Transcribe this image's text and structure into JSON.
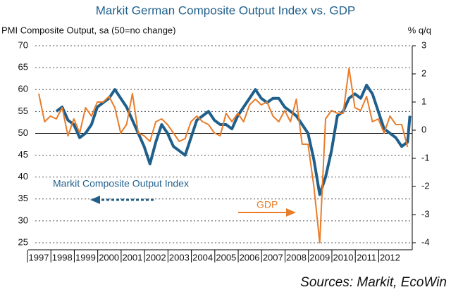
{
  "chart_data": {
    "type": "line",
    "title": "Markit German Composite Output Index vs. GDP",
    "y_label": "PMI Composite Output, sa (50=no change)",
    "y2_label": "% q/q",
    "annotations": [
      "Markit Composite Output Index",
      "GDP"
    ],
    "source": "Sources: Markit, EcoWin",
    "xlim": [
      1996.85,
      2012.95
    ],
    "xticks": [
      1997,
      1998,
      1999,
      2000,
      2001,
      2002,
      2003,
      2004,
      2005,
      2006,
      2007,
      2008,
      2009,
      2010,
      2011,
      2012
    ],
    "ylim": [
      25,
      70
    ],
    "yticks": [
      25,
      30,
      35,
      40,
      45,
      50,
      55,
      60,
      65,
      70
    ],
    "y2lim": [
      -4,
      3
    ],
    "y2ticks": [
      -4,
      -3,
      -2,
      -1,
      0,
      1,
      2,
      3
    ],
    "hline": 50,
    "grid": true,
    "series": [
      {
        "name": "Markit Composite Output Index",
        "color": "#1f5f8b",
        "x": [
          1997.75,
          1998.0,
          1998.25,
          1998.5,
          1998.75,
          1999.0,
          1999.25,
          1999.5,
          1999.75,
          2000.0,
          2000.25,
          2000.5,
          2000.75,
          2001.0,
          2001.25,
          2001.5,
          2001.75,
          2002.0,
          2002.25,
          2002.5,
          2002.75,
          2003.0,
          2003.25,
          2003.5,
          2003.75,
          2004.0,
          2004.25,
          2004.5,
          2004.75,
          2005.0,
          2005.25,
          2005.5,
          2005.75,
          2006.0,
          2006.25,
          2006.5,
          2006.75,
          2007.0,
          2007.25,
          2007.5,
          2007.75,
          2008.0,
          2008.25,
          2008.5,
          2008.75,
          2009.0,
          2009.25,
          2009.5,
          2009.75,
          2010.0,
          2010.25,
          2010.5,
          2010.75,
          2011.0,
          2011.25,
          2011.5,
          2011.75,
          2012.0,
          2012.25,
          2012.5,
          2012.75,
          2012.85
        ],
        "values": [
          55,
          56,
          53,
          52,
          49,
          50,
          52,
          56,
          57,
          58,
          60,
          58,
          56,
          53,
          50,
          47,
          43,
          48,
          52,
          50,
          47,
          46,
          45,
          49,
          53,
          54,
          55,
          53,
          52,
          52,
          51,
          54,
          56,
          58,
          60,
          58,
          57,
          58,
          58,
          56,
          55,
          54,
          52,
          50,
          44,
          36,
          40,
          46,
          54,
          55,
          58,
          59,
          58,
          61,
          59,
          55,
          51,
          50,
          49,
          47,
          48,
          54
        ]
      },
      {
        "name": "GDP",
        "color": "#e87d2a",
        "axis": "y2",
        "x": [
          1997.0,
          1997.25,
          1997.5,
          1997.75,
          1998.0,
          1998.25,
          1998.5,
          1998.75,
          1999.0,
          1999.25,
          1999.5,
          1999.75,
          2000.0,
          2000.25,
          2000.5,
          2000.75,
          2001.0,
          2001.25,
          2001.5,
          2001.75,
          2002.0,
          2002.25,
          2002.5,
          2002.75,
          2003.0,
          2003.25,
          2003.5,
          2003.75,
          2004.0,
          2004.25,
          2004.5,
          2004.75,
          2005.0,
          2005.25,
          2005.5,
          2005.75,
          2006.0,
          2006.25,
          2006.5,
          2006.75,
          2007.0,
          2007.25,
          2007.5,
          2007.75,
          2008.0,
          2008.25,
          2008.5,
          2008.75,
          2009.0,
          2009.25,
          2009.5,
          2009.75,
          2010.0,
          2010.25,
          2010.5,
          2010.75,
          2011.0,
          2011.25,
          2011.5,
          2011.75,
          2012.0,
          2012.25,
          2012.5,
          2012.75
        ],
        "values": [
          1.3,
          0.3,
          0.5,
          0.4,
          0.8,
          -0.2,
          0.4,
          -0.1,
          0.8,
          0.5,
          1.0,
          1.0,
          1.2,
          0.8,
          -0.1,
          0.2,
          1.3,
          -0.1,
          -0.2,
          -0.4,
          0.3,
          0.4,
          0.2,
          -0.1,
          -0.4,
          -0.3,
          0.3,
          0.5,
          0.3,
          0.2,
          -0.1,
          -0.2,
          0.6,
          0.3,
          0.6,
          0.3,
          0.9,
          1.1,
          0.9,
          1.0,
          0.5,
          0.3,
          0.7,
          0.3,
          1.1,
          -0.5,
          -0.5,
          -2.0,
          -4.0,
          0.4,
          0.7,
          0.6,
          0.6,
          2.2,
          0.8,
          0.7,
          1.2,
          0.3,
          0.4,
          -0.1,
          0.5,
          0.2,
          0.2,
          -0.6
        ]
      }
    ]
  }
}
